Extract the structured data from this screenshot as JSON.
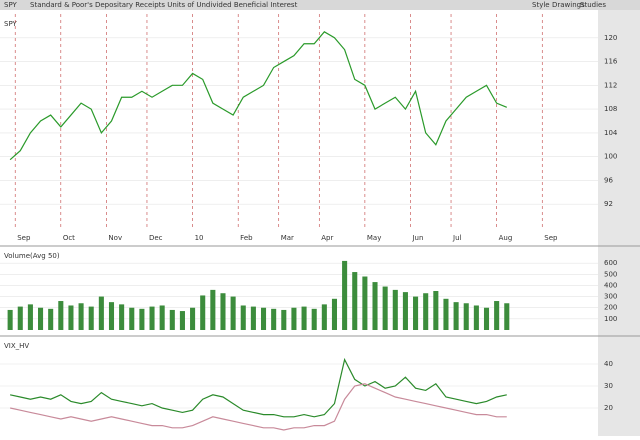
{
  "header": {
    "symbol": "SPY",
    "description": "Standard & Poor's Depositary Receipts Units of Undivided Beneficial Interest",
    "buttons": [
      "Style",
      "Drawings",
      "Studies"
    ]
  },
  "chart_data": [
    {
      "type": "line",
      "title": "SPY",
      "xlim": [
        -1,
        58
      ],
      "ylim": [
        88,
        124
      ],
      "yticks": [
        92,
        96,
        100,
        104,
        108,
        112,
        116,
        120
      ],
      "xticks": [
        {
          "value": 0.5,
          "label": "Sep"
        },
        {
          "value": 5,
          "label": "Oct"
        },
        {
          "value": 9.5,
          "label": "Nov"
        },
        {
          "value": 13.5,
          "label": "Dec"
        },
        {
          "value": 18,
          "label": "10"
        },
        {
          "value": 22.5,
          "label": "Feb"
        },
        {
          "value": 26.5,
          "label": "Mar"
        },
        {
          "value": 30.5,
          "label": "Apr"
        },
        {
          "value": 35,
          "label": "May"
        },
        {
          "value": 39.5,
          "label": "Jun"
        },
        {
          "value": 43.5,
          "label": "Jul"
        },
        {
          "value": 48,
          "label": "Aug"
        },
        {
          "value": 52.5,
          "label": "Sep"
        }
      ],
      "grid": true,
      "series": [
        {
          "name": "SPY",
          "color": "#2a9a2a",
          "values": [
            99.5,
            101,
            104,
            106,
            107,
            105,
            107,
            109,
            108,
            104,
            106,
            110,
            110,
            111,
            110,
            111,
            112,
            112,
            114,
            113,
            109,
            108,
            107,
            110,
            111,
            112,
            115,
            116,
            117,
            119,
            119,
            121,
            120,
            118,
            113,
            112,
            108,
            109,
            110,
            108,
            111,
            104,
            102,
            106,
            108,
            110,
            111,
            112,
            109,
            108.3
          ]
        }
      ]
    },
    {
      "type": "bar",
      "title": "Volume(Avg 50)",
      "xlim": [
        -1,
        58
      ],
      "ylim": [
        0,
        700
      ],
      "yticks": [
        100,
        200,
        300,
        400,
        500,
        600
      ],
      "grid": true,
      "series": [
        {
          "name": "Volume",
          "color": "#3c8c3c",
          "values": [
            180,
            210,
            230,
            200,
            190,
            260,
            220,
            240,
            210,
            300,
            250,
            230,
            200,
            190,
            210,
            220,
            180,
            170,
            200,
            310,
            360,
            330,
            300,
            220,
            210,
            200,
            190,
            180,
            200,
            210,
            190,
            230,
            280,
            620,
            520,
            480,
            430,
            390,
            360,
            340,
            300,
            330,
            350,
            280,
            250,
            240,
            220,
            200,
            260,
            240
          ]
        }
      ]
    },
    {
      "type": "line",
      "title": "VIX_HV",
      "xlim": [
        -1,
        58
      ],
      "ylim": [
        10,
        50
      ],
      "yticks": [
        20,
        30,
        40
      ],
      "grid": true,
      "series": [
        {
          "name": "VIX",
          "color": "#2a8a2a",
          "values": [
            26,
            25,
            24,
            25,
            24,
            26,
            23,
            22,
            23,
            27,
            24,
            23,
            22,
            21,
            22,
            20,
            19,
            18,
            19,
            24,
            26,
            25,
            22,
            19,
            18,
            17,
            17,
            16,
            16,
            17,
            16,
            17,
            22,
            42,
            33,
            30,
            32,
            29,
            30,
            34,
            29,
            28,
            31,
            25,
            24,
            23,
            22,
            23,
            25,
            26
          ]
        },
        {
          "name": "HV",
          "color": "#c88a9a",
          "values": [
            20,
            19,
            18,
            17,
            16,
            15,
            16,
            15,
            14,
            15,
            16,
            15,
            14,
            13,
            12,
            12,
            11,
            11,
            12,
            14,
            16,
            15,
            14,
            13,
            12,
            11,
            11,
            10,
            11,
            11,
            12,
            12,
            14,
            24,
            30,
            31,
            29,
            27,
            25,
            24,
            23,
            22,
            21,
            20,
            19,
            18,
            17,
            17,
            16,
            16
          ]
        }
      ]
    }
  ]
}
